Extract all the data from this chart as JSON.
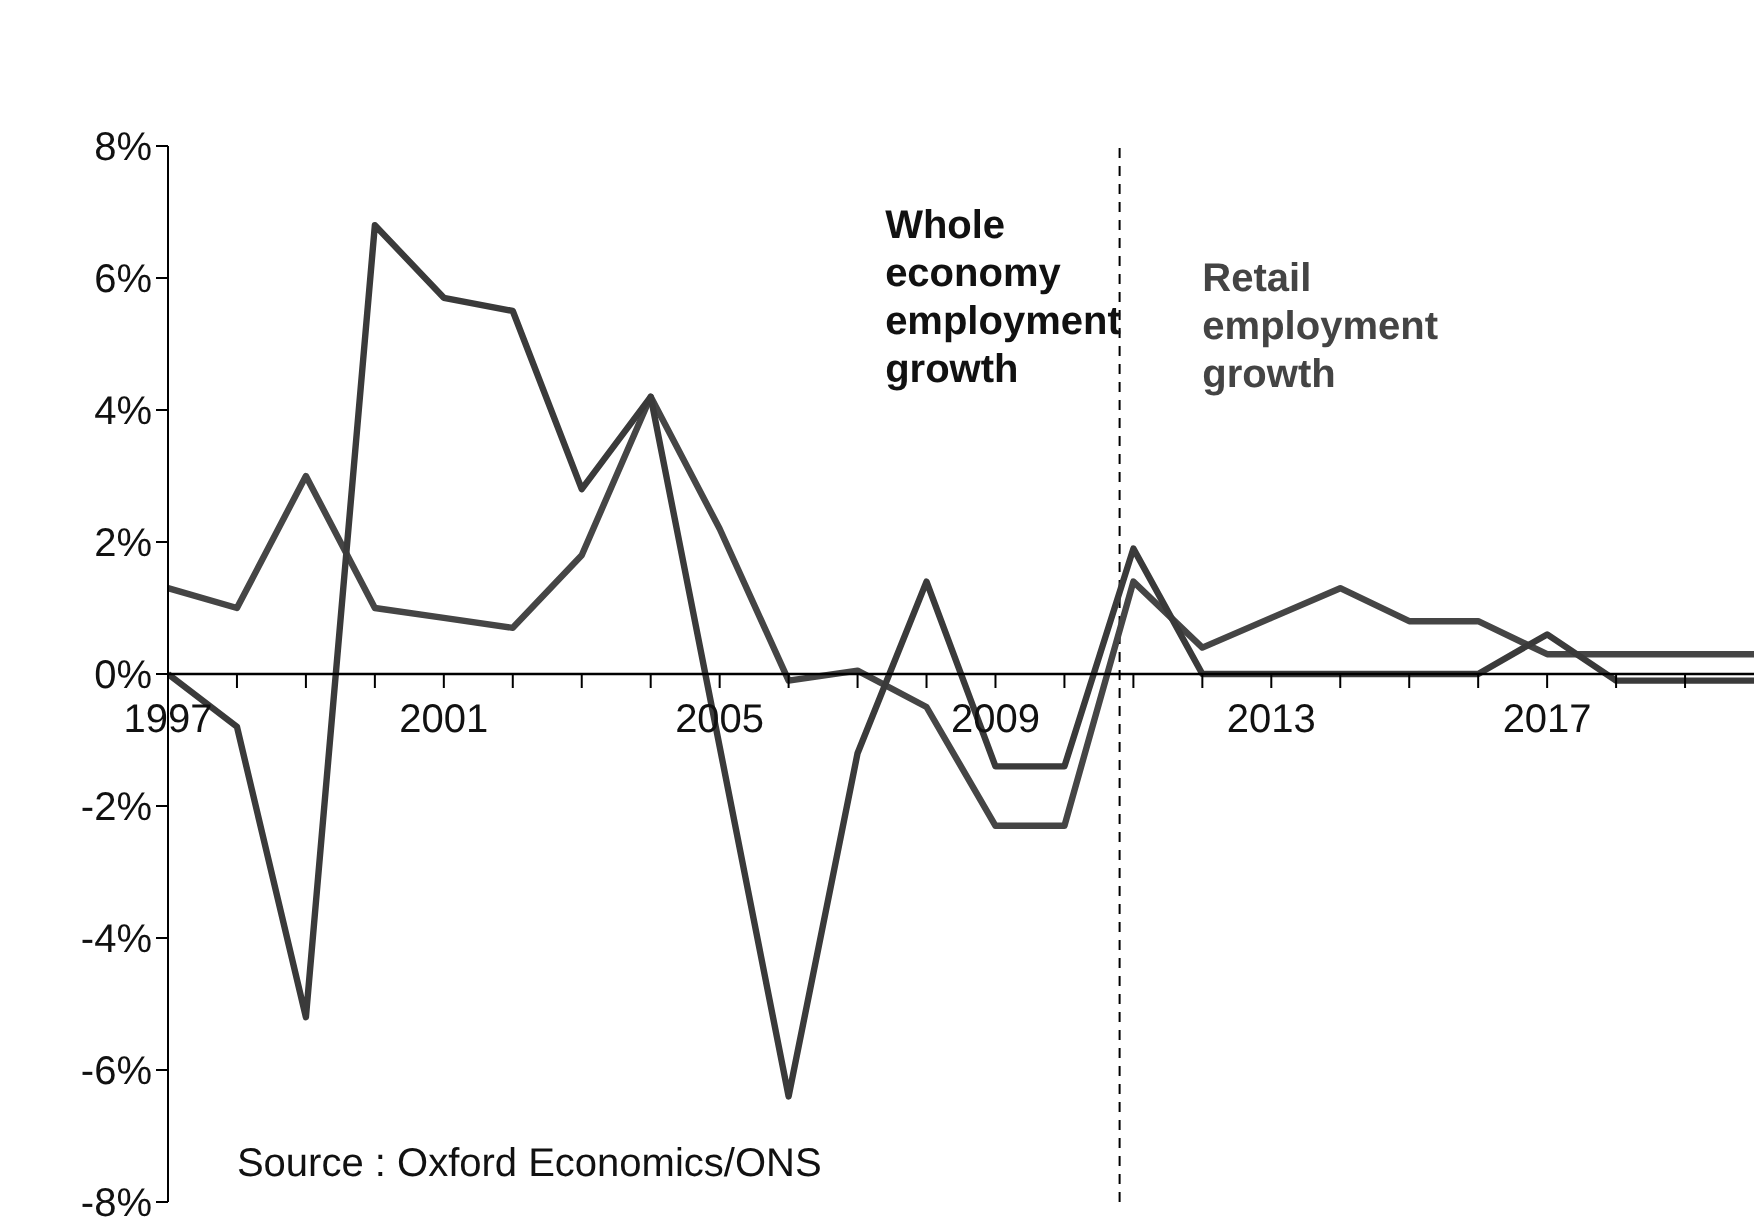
{
  "chart_data": {
    "type": "line",
    "x": [
      1997,
      1998,
      1999,
      2000,
      2001,
      2002,
      2003,
      2004,
      2005,
      2006,
      2007,
      2008,
      2009,
      2010,
      2011,
      2012,
      2013,
      2014,
      2015,
      2016,
      2017,
      2018,
      2019,
      2020
    ],
    "series": [
      {
        "color": "#454545",
        "values": [
          1.3,
          1.0,
          3.0,
          1.0,
          0.85,
          0.7,
          1.8,
          4.2,
          2.2,
          -0.1,
          0.05,
          -0.5,
          -2.3,
          -2.3,
          1.4,
          0.4,
          0.85,
          1.3,
          0.8,
          0.8,
          0.3,
          0.3,
          0.3,
          0.3
        ]
      },
      {
        "color": "#3a3a3a",
        "values": [
          0,
          -0.8,
          -5.2,
          6.8,
          5.7,
          5.5,
          2.8,
          4.2,
          -1.1,
          -6.4,
          -1.2,
          1.4,
          -1.4,
          -1.4,
          1.9,
          0,
          0,
          0,
          0,
          0,
          0.6,
          -0.1,
          -0.1,
          -0.1
        ]
      }
    ],
    "xlim": [
      1997,
      2020
    ],
    "xticks": [
      1997,
      {
        "value": 1998,
        "label": null
      },
      {
        "value": 1999,
        "label": null
      },
      {
        "value": 2000,
        "label": null
      },
      2001,
      {
        "value": 2002,
        "label": null
      },
      {
        "value": 2003,
        "label": null
      },
      {
        "value": 2004,
        "label": null
      },
      2005,
      {
        "value": 2006,
        "label": null
      },
      {
        "value": 2007,
        "label": null
      },
      {
        "value": 2008,
        "label": null
      },
      2009,
      {
        "value": 2010,
        "label": null
      },
      {
        "value": 2011,
        "label": null
      },
      {
        "value": 2012,
        "label": null
      },
      2013,
      {
        "value": 2014,
        "label": null
      },
      {
        "value": 2015,
        "label": null
      },
      {
        "value": 2016,
        "label": null
      },
      2017,
      {
        "value": 2018,
        "label": null
      },
      {
        "value": 2019,
        "label": null
      }
    ],
    "ylim": [
      -8,
      8
    ],
    "yticks": [
      {
        "value": -8,
        "label": "-8%"
      },
      {
        "value": -6,
        "label": "-6%"
      },
      {
        "value": -4,
        "label": "-4%"
      },
      {
        "value": -2,
        "label": "-2%"
      },
      {
        "value": 0,
        "label": "0%"
      },
      {
        "value": 2,
        "label": "2%"
      },
      {
        "value": 4,
        "label": "4%"
      },
      {
        "value": 6,
        "label": "6%"
      },
      {
        "value": 8,
        "label": "8%"
      }
    ],
    "ref_lines": [
      {
        "axis": "x",
        "value": 2010.8,
        "line_style": "dashed",
        "color": "#000000"
      }
    ],
    "annotations": [
      "Whole economy employment growth",
      "Retail employment growth",
      "Source : Oxford Economics/ONS"
    ],
    "grid": false,
    "legend": false,
    "marker": "none",
    "line_style": "solid"
  }
}
